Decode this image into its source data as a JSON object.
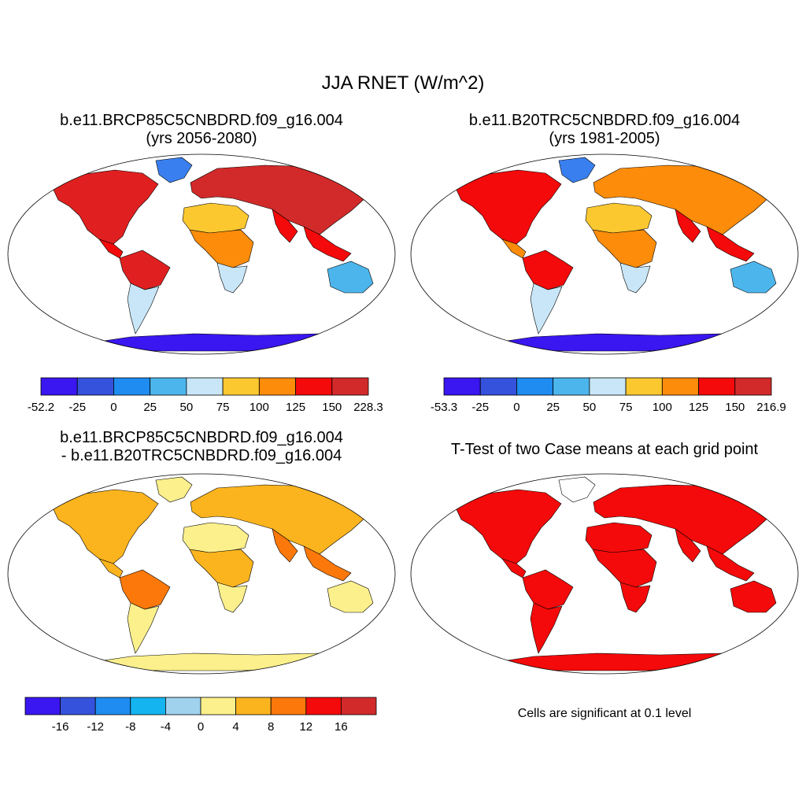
{
  "title": "JJA RNET (W/m^2)",
  "panels": {
    "p1": {
      "line1": "b.e11.BRCP85C5CNBDRD.f09_g16.004",
      "line2": "(yrs 2056-2080)"
    },
    "p2": {
      "line1": "b.e11.B20TRC5CNBDRD.f09_g16.004",
      "line2": "(yrs 1981-2005)"
    },
    "p3": {
      "line1": "b.e11.BRCP85C5CNBDRD.f09_g16.004",
      "line2": "- b.e11.B20TRC5CNBDRD.f09_g16.004"
    },
    "p4": {
      "line1": "T-Test of two Case means at each grid point"
    }
  },
  "significance_note": "Cells are significant at 0.1 level",
  "colorbars": {
    "cb1": {
      "colors": [
        "#3a16f0",
        "#3552dc",
        "#1e8cf0",
        "#4cb6ec",
        "#c8e6f7",
        "#fcc830",
        "#fc8c0a",
        "#f40a0a",
        "#d22a2a"
      ],
      "labels": [
        "-52.2",
        "-25",
        "0",
        "25",
        "50",
        "75",
        "100",
        "125",
        "150",
        "228.3"
      ]
    },
    "cb2": {
      "colors": [
        "#3a16f0",
        "#3552dc",
        "#1e8cf0",
        "#4cb6ec",
        "#c8e6f7",
        "#fcc830",
        "#fc8c0a",
        "#f40a0a",
        "#d22a2a"
      ],
      "labels": [
        "-53.3",
        "-25",
        "0",
        "25",
        "50",
        "75",
        "100",
        "125",
        "150",
        "216.9"
      ]
    },
    "cb3": {
      "colors": [
        "#3a16f0",
        "#3552dc",
        "#1e8cf0",
        "#14b4f0",
        "#a0d2ee",
        "#fcf08c",
        "#fcb41e",
        "#fc780a",
        "#f40a0a",
        "#d22a2a"
      ],
      "labels": [
        "-16",
        "-12",
        "-8",
        "-4",
        "0",
        "4",
        "8",
        "12",
        "16"
      ]
    }
  },
  "maps": {
    "p1": {
      "ocean": "#ffffff",
      "land": {
        "north_america": "#e02020",
        "greenland": "#3a7ff0",
        "central_america": "#f40a0a",
        "south_america_north": "#e02020",
        "south_america_south": "#c8e6f7",
        "europe_asia": "#d22a2a",
        "africa_north": "#fcc830",
        "africa_central": "#fc8c0a",
        "africa_south": "#c8e6f7",
        "india_seasia": "#f40a0a",
        "australia": "#4cb6ec",
        "antarctica": "#3a16f0"
      }
    },
    "p2": {
      "ocean": "#ffffff",
      "land": {
        "north_america": "#f40a0a",
        "greenland": "#3a7ff0",
        "central_america": "#fc8c0a",
        "south_america_north": "#f40a0a",
        "south_america_south": "#c8e6f7",
        "europe_asia": "#fc8c0a",
        "africa_north": "#fcc830",
        "africa_central": "#fc8c0a",
        "africa_south": "#c8e6f7",
        "india_seasia": "#f40a0a",
        "australia": "#4cb6ec",
        "antarctica": "#3a16f0"
      }
    },
    "p3": {
      "ocean": "#ffffff",
      "land": {
        "north_america": "#fcb41e",
        "greenland": "#fcf08c",
        "central_america": "#fcb41e",
        "south_america_north": "#fc780a",
        "south_america_south": "#fcf08c",
        "europe_asia": "#fcb41e",
        "africa_north": "#fcf08c",
        "africa_central": "#fcb41e",
        "africa_south": "#fcf08c",
        "india_seasia": "#fc780a",
        "australia": "#fcf08c",
        "antarctica": "#fcf08c"
      }
    },
    "p4": {
      "ocean": "#ffffff",
      "land": {
        "north_america": "#f40a0a",
        "greenland": "#ffffff",
        "central_america": "#f40a0a",
        "south_america_north": "#f40a0a",
        "south_america_south": "#f40a0a",
        "europe_asia": "#f40a0a",
        "africa_north": "#f40a0a",
        "africa_central": "#f40a0a",
        "africa_south": "#f40a0a",
        "india_seasia": "#f40a0a",
        "australia": "#f40a0a",
        "antarctica": "#f40a0a"
      }
    }
  }
}
